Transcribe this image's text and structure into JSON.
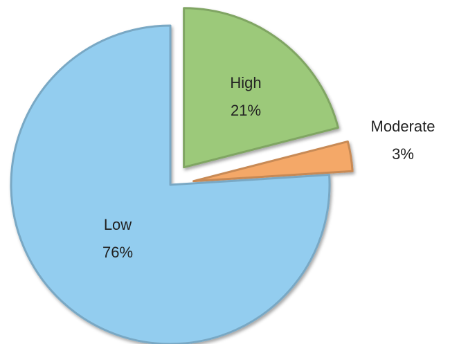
{
  "chart_data": {
    "type": "pie",
    "exploded": true,
    "slices": [
      {
        "name": "High",
        "value": 21,
        "value_label": "21%",
        "color": "#9cc97a",
        "label_placement": "inside"
      },
      {
        "name": "Moderate",
        "value": 3,
        "value_label": "3%",
        "color": "#f4a868",
        "label_placement": "outside"
      },
      {
        "name": "Low",
        "value": 76,
        "value_label": "76%",
        "color": "#93cdef",
        "label_placement": "inside"
      }
    ]
  }
}
